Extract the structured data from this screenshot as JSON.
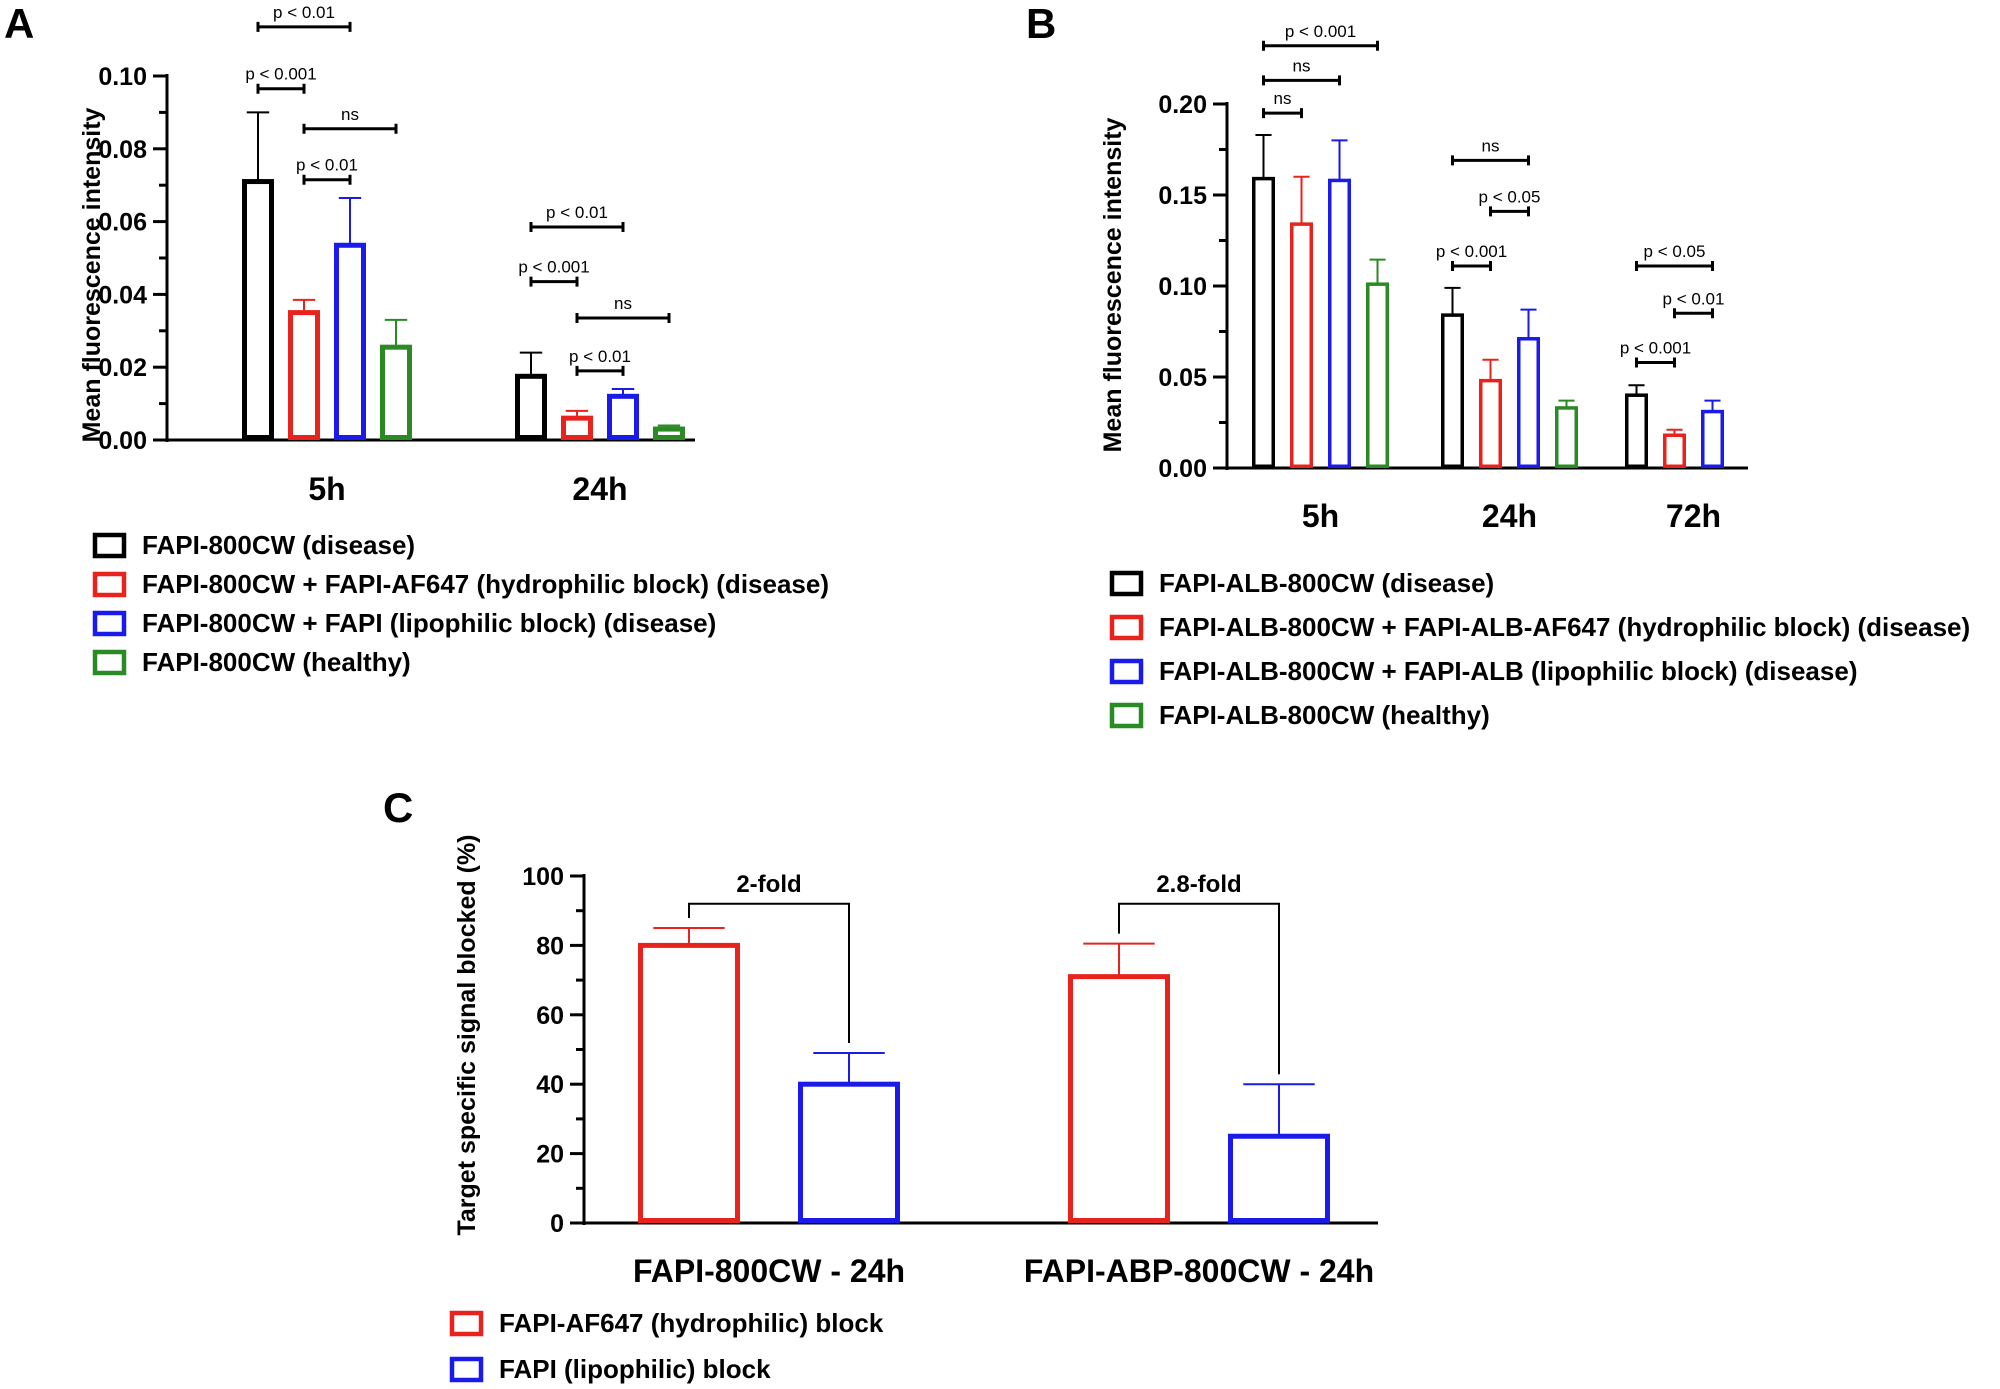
{
  "chart_data": [
    {
      "type": "bar",
      "panel": "A",
      "ylabel": "Mean fluorescence intensity",
      "xlabel": "",
      "ylim": [
        0,
        0.1
      ],
      "yticks": [
        "0.00",
        "0.02",
        "0.04",
        "0.06",
        "0.08",
        "0.10"
      ],
      "categories": [
        "5h",
        "24h"
      ],
      "series": [
        {
          "name": "FAPI-800CW  (disease)",
          "color": "#000000",
          "values": [
            0.071,
            0.0175
          ],
          "errors": [
            0.019,
            0.0065
          ]
        },
        {
          "name": "FAPI-800CW + FAPI-AF647 (hydrophilic block) (disease)",
          "color": "#e8231d",
          "values": [
            0.035,
            0.006
          ],
          "errors": [
            0.0035,
            0.002
          ]
        },
        {
          "name": "FAPI-800CW + FAPI (lipophilic block) (disease)",
          "color": "#1a1aeb",
          "values": [
            0.0535,
            0.012
          ],
          "errors": [
            0.013,
            0.002
          ]
        },
        {
          "name": "FAPI-800CW (healthy)",
          "color": "#2a8a23",
          "values": [
            0.0255,
            0.003
          ],
          "errors": [
            0.0075,
            0.001
          ]
        }
      ],
      "significance": [
        {
          "label": "p < 0.01",
          "category": 0,
          "from": 0,
          "to": 2,
          "level": 0.1135
        },
        {
          "label": "p < 0.001",
          "category": 0,
          "from": 0,
          "to": 1,
          "level": 0.0965
        },
        {
          "label": "ns",
          "category": 0,
          "from": 1,
          "to": 3,
          "level": 0.0855
        },
        {
          "label": "p < 0.01",
          "category": 0,
          "from": 1,
          "to": 2,
          "level": 0.0715
        },
        {
          "label": "p < 0.01",
          "category": 1,
          "from": 0,
          "to": 2,
          "level": 0.0585
        },
        {
          "label": "p < 0.001",
          "category": 1,
          "from": 0,
          "to": 1,
          "level": 0.0435
        },
        {
          "label": "ns",
          "category": 1,
          "from": 1,
          "to": 3,
          "level": 0.0335
        },
        {
          "label": "p < 0.01",
          "category": 1,
          "from": 1,
          "to": 2,
          "level": 0.019
        }
      ]
    },
    {
      "type": "bar",
      "panel": "B",
      "ylabel": "Mean fluorescence intensity",
      "xlabel": "",
      "ylim": [
        0,
        0.2
      ],
      "yticks": [
        "0.00",
        "0.05",
        "0.10",
        "0.15",
        "0.20"
      ],
      "categories": [
        "5h",
        "24h",
        "72h"
      ],
      "series": [
        {
          "name": "FAPI-ALB-800CW (disease)",
          "color": "#000000",
          "values": [
            0.159,
            0.084,
            0.04
          ],
          "errors": [
            0.024,
            0.015,
            0.0055
          ]
        },
        {
          "name": "FAPI-ALB-800CW + FAPI-ALB-AF647 (hydrophilic block) (disease)",
          "color": "#e8231d",
          "values": [
            0.134,
            0.048,
            0.018
          ],
          "errors": [
            0.026,
            0.0115,
            0.003
          ]
        },
        {
          "name": "FAPI-ALB-800CW + FAPI-ALB (lipophilic block) (disease)",
          "color": "#1a1aeb",
          "values": [
            0.158,
            0.071,
            0.031
          ],
          "errors": [
            0.022,
            0.016,
            0.006
          ]
        },
        {
          "name": "FAPI-ALB-800CW (healthy)",
          "color": "#2a8a23",
          "values": [
            0.101,
            0.033,
            null
          ],
          "errors": [
            0.0135,
            0.004,
            null
          ]
        }
      ],
      "significance": [
        {
          "label": "p < 0.001",
          "category": 0,
          "from": 0,
          "to": 3,
          "level": 0.232
        },
        {
          "label": "ns",
          "category": 0,
          "from": 0,
          "to": 2,
          "level": 0.213
        },
        {
          "label": "ns",
          "category": 0,
          "from": 0,
          "to": 1,
          "level": 0.195
        },
        {
          "label": "ns",
          "category": 1,
          "from": 0,
          "to": 2,
          "level": 0.169
        },
        {
          "label": "p < 0.05",
          "category": 1,
          "from": 1,
          "to": 2,
          "level": 0.141
        },
        {
          "label": "p < 0.001",
          "category": 1,
          "from": 0,
          "to": 1,
          "level": 0.111
        },
        {
          "label": "p < 0.05",
          "category": 2,
          "from": 0,
          "to": 2,
          "level": 0.111
        },
        {
          "label": "p < 0.01",
          "category": 2,
          "from": 1,
          "to": 2,
          "level": 0.085
        },
        {
          "label": "p < 0.001",
          "category": 2,
          "from": 0,
          "to": 1,
          "level": 0.058
        }
      ]
    },
    {
      "type": "bar",
      "panel": "C",
      "ylabel": "Target specific signal blocked (%)",
      "xlabel": "",
      "ylim": [
        0,
        100
      ],
      "yticks": [
        "0",
        "20",
        "40",
        "60",
        "80",
        "100"
      ],
      "categories": [
        "FAPI-800CW - 24h",
        "FAPI-ABP-800CW - 24h"
      ],
      "series": [
        {
          "name": "FAPI-AF647 (hydrophilic) block",
          "color": "#e8231d",
          "values": [
            80,
            71
          ],
          "errors": [
            5,
            9.5
          ]
        },
        {
          "name": "FAPI (lipophilic) block",
          "color": "#1a1aeb",
          "values": [
            40,
            25
          ],
          "errors": [
            9,
            15
          ]
        }
      ],
      "annotations": [
        {
          "label": "2-fold",
          "category": 0,
          "level": 92
        },
        {
          "label": "2.8-fold",
          "category": 1,
          "level": 92
        }
      ]
    }
  ]
}
